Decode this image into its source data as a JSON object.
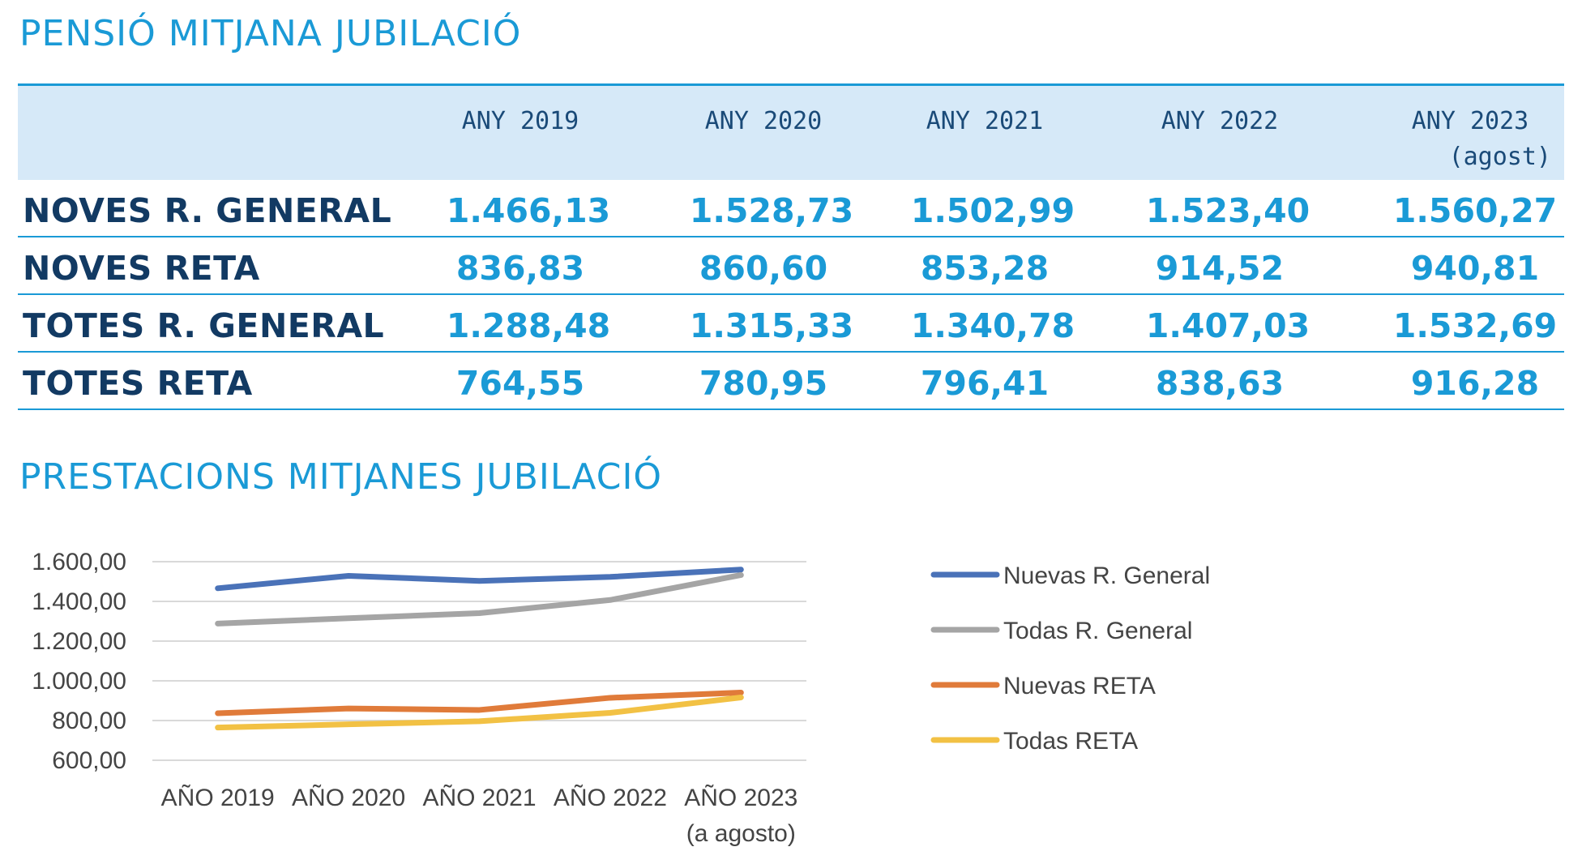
{
  "table": {
    "title": "PENSIÓ MITJANA JUBILACIÓ",
    "headers": [
      "ANY 2019",
      "ANY 2020",
      "ANY 2021",
      "ANY 2022",
      "ANY 2023"
    ],
    "header_note": "(agost)",
    "rows": [
      {
        "label": "NOVES R. GENERAL",
        "values": [
          "1.466,13",
          "1.528,73",
          "1.502,99",
          "1.523,40",
          "1.560,27"
        ]
      },
      {
        "label": "NOVES RETA",
        "values": [
          "836,83",
          "860,60",
          "853,28",
          "914,52",
          "940,81"
        ]
      },
      {
        "label": "TOTES R. GENERAL",
        "values": [
          "1.288,48",
          "1.315,33",
          "1.340,78",
          "1.407,03",
          "1.532,69"
        ]
      },
      {
        "label": "TOTES RETA",
        "values": [
          "764,55",
          "780,95",
          "796,41",
          "838,63",
          "916,28"
        ]
      }
    ]
  },
  "chart_data": {
    "type": "line",
    "title": "PRESTACIONS MITJANES JUBILACIÓ",
    "categories": [
      "AÑO 2019",
      "AÑO 2020",
      "AÑO 2021",
      "AÑO 2022",
      "AÑO 2023"
    ],
    "category_note": "(a agosto)",
    "ylim": [
      600,
      1600
    ],
    "yticks": [
      600,
      800,
      1000,
      1200,
      1400,
      1600
    ],
    "ytick_labels": [
      "600,00",
      "800,00",
      "1.000,00",
      "1.200,00",
      "1.400,00",
      "1.600,00"
    ],
    "grid": true,
    "legend_position": "right",
    "series": [
      {
        "name": "Nuevas R. General",
        "color": "#4a72b8",
        "values": [
          1466.13,
          1528.73,
          1502.99,
          1523.4,
          1560.27
        ]
      },
      {
        "name": "Todas R. General",
        "color": "#a5a5a5",
        "values": [
          1288.48,
          1315.33,
          1340.78,
          1407.03,
          1532.69
        ]
      },
      {
        "name": "Nuevas RETA",
        "color": "#e07b3a",
        "values": [
          836.83,
          860.6,
          853.28,
          914.52,
          940.81
        ]
      },
      {
        "name": "Todas RETA",
        "color": "#f2c144",
        "values": [
          764.55,
          780.95,
          796.41,
          838.63,
          916.28
        ]
      }
    ]
  }
}
